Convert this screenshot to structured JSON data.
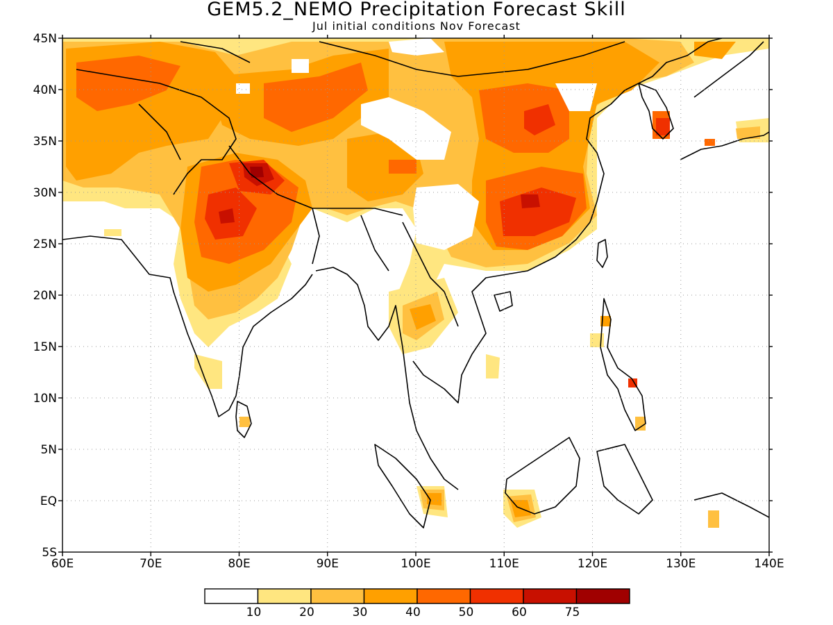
{
  "title": "GEM5.2_NEMO Precipitation Forecast Skill",
  "subtitle": "Jul initial conditions   Nov Forecast",
  "map": {
    "lon_range": [
      60,
      140
    ],
    "lat_range": [
      -5,
      45
    ],
    "lon_ticks": [
      {
        "v": 60,
        "label": "60E"
      },
      {
        "v": 70,
        "label": "70E"
      },
      {
        "v": 80,
        "label": "80E"
      },
      {
        "v": 90,
        "label": "90E"
      },
      {
        "v": 100,
        "label": "100E"
      },
      {
        "v": 110,
        "label": "110E"
      },
      {
        "v": 120,
        "label": "120E"
      },
      {
        "v": 130,
        "label": "130E"
      },
      {
        "v": 140,
        "label": "140E"
      }
    ],
    "lat_ticks": [
      {
        "v": 45,
        "label": "45N"
      },
      {
        "v": 40,
        "label": "40N"
      },
      {
        "v": 35,
        "label": "35N"
      },
      {
        "v": 30,
        "label": "30N"
      },
      {
        "v": 25,
        "label": "25N"
      },
      {
        "v": 20,
        "label": "20N"
      },
      {
        "v": 15,
        "label": "15N"
      },
      {
        "v": 10,
        "label": "10N"
      },
      {
        "v": 5,
        "label": "5N"
      },
      {
        "v": 0,
        "label": "EQ"
      },
      {
        "v": -5,
        "label": "5S"
      }
    ],
    "grid": "dotted"
  },
  "colorbar": {
    "colors": [
      "#ffffff",
      "#ffe680",
      "#ffc040",
      "#ffa000",
      "#ff6800",
      "#f03000",
      "#c81000",
      "#a00000"
    ],
    "labels": [
      "10",
      "20",
      "30",
      "40",
      "50",
      "60",
      "75"
    ]
  }
}
